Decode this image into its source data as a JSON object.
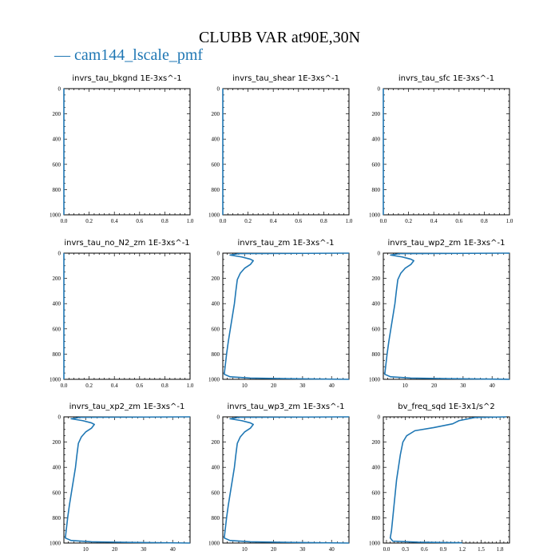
{
  "figure": {
    "title": "CLUBB VAR at90E,30N",
    "legend_label": "— cam144_lscale_pmf",
    "series_color": "#1f77b4"
  },
  "chart_data": [
    {
      "type": "line",
      "title": "invrs_tau_bkgnd   1E-3xs^-1",
      "xlim": [
        0,
        1
      ],
      "ylim": [
        1000,
        0
      ],
      "x_ticks": [
        0.0,
        0.2,
        0.4,
        0.6,
        0.8,
        1.0
      ],
      "x_tick_labels": [
        "0.0",
        "0.2",
        "0.4",
        "0.6",
        "0.8",
        "1.0"
      ],
      "y_ticks": [
        0,
        200,
        400,
        600,
        800,
        1000
      ],
      "series": [
        {
          "name": "cam144_lscale_pmf",
          "points": [
            [
              0,
              0
            ],
            [
              0,
              1000
            ]
          ]
        }
      ]
    },
    {
      "type": "line",
      "title": "invrs_tau_shear   1E-3xs^-1",
      "xlim": [
        0,
        1
      ],
      "ylim": [
        1000,
        0
      ],
      "x_ticks": [
        0.0,
        0.2,
        0.4,
        0.6,
        0.8,
        1.0
      ],
      "x_tick_labels": [
        "0.0",
        "0.2",
        "0.4",
        "0.6",
        "0.8",
        "1.0"
      ],
      "y_ticks": [
        0,
        200,
        400,
        600,
        800,
        1000
      ],
      "series": [
        {
          "name": "cam144_lscale_pmf",
          "points": [
            [
              0,
              0
            ],
            [
              0,
              1000
            ]
          ]
        }
      ]
    },
    {
      "type": "line",
      "title": "invrs_tau_sfc   1E-3xs^-1",
      "xlim": [
        0,
        1
      ],
      "ylim": [
        1000,
        0
      ],
      "x_ticks": [
        0.0,
        0.2,
        0.4,
        0.6,
        0.8,
        1.0
      ],
      "x_tick_labels": [
        "0.0",
        "0.2",
        "0.4",
        "0.6",
        "0.8",
        "1.0"
      ],
      "y_ticks": [
        0,
        200,
        400,
        600,
        800,
        1000
      ],
      "series": [
        {
          "name": "cam144_lscale_pmf",
          "points": [
            [
              0,
              0
            ],
            [
              0,
              1000
            ]
          ]
        }
      ]
    },
    {
      "type": "line",
      "title": "invrs_tau_no_N2_zm   1E-3xs^-1",
      "xlim": [
        0,
        1
      ],
      "ylim": [
        1000,
        0
      ],
      "x_ticks": [
        0.0,
        0.2,
        0.4,
        0.6,
        0.8,
        1.0
      ],
      "x_tick_labels": [
        "0.0",
        "0.2",
        "0.4",
        "0.6",
        "0.8",
        "1.0"
      ],
      "y_ticks": [
        0,
        200,
        400,
        600,
        800,
        1000
      ],
      "series": [
        {
          "name": "cam144_lscale_pmf",
          "points": [
            [
              0,
              0
            ],
            [
              0,
              1000
            ]
          ]
        }
      ]
    },
    {
      "type": "line",
      "title": "invrs_tau_zm   1E-3xs^-1",
      "xlim": [
        2.5,
        46
      ],
      "ylim": [
        1000,
        0
      ],
      "x_ticks": [
        10,
        20,
        30,
        40
      ],
      "x_tick_labels": [
        "10",
        "20",
        "30",
        "40"
      ],
      "y_ticks": [
        0,
        200,
        400,
        600,
        800,
        1000
      ],
      "series": [
        {
          "name": "cam144_lscale_pmf",
          "points": [
            [
              46,
              0
            ],
            [
              8,
              4
            ],
            [
              5,
              15
            ],
            [
              9,
              30
            ],
            [
              12,
              48
            ],
            [
              13,
              60
            ],
            [
              12,
              90
            ],
            [
              10,
              120
            ],
            [
              8.5,
              160
            ],
            [
              7.5,
              210
            ],
            [
              7,
              300
            ],
            [
              6.5,
              400
            ],
            [
              5.8,
              500
            ],
            [
              5.1,
              600
            ],
            [
              4.4,
              700
            ],
            [
              3.8,
              800
            ],
            [
              3.3,
              900
            ],
            [
              3,
              960
            ],
            [
              5,
              980
            ],
            [
              12,
              990
            ],
            [
              25,
              995
            ],
            [
              46,
              1000
            ]
          ]
        }
      ]
    },
    {
      "type": "line",
      "title": "invrs_tau_wp2_zm   1E-3xs^-1",
      "xlim": [
        2.5,
        46
      ],
      "ylim": [
        1000,
        0
      ],
      "x_ticks": [
        10,
        20,
        30,
        40
      ],
      "x_tick_labels": [
        "10",
        "20",
        "30",
        "40"
      ],
      "y_ticks": [
        0,
        200,
        400,
        600,
        800,
        1000
      ],
      "series": [
        {
          "name": "cam144_lscale_pmf",
          "points": [
            [
              46,
              0
            ],
            [
              8,
              4
            ],
            [
              5,
              15
            ],
            [
              9,
              30
            ],
            [
              12,
              48
            ],
            [
              13,
              60
            ],
            [
              12,
              90
            ],
            [
              10,
              120
            ],
            [
              8.5,
              160
            ],
            [
              7.5,
              210
            ],
            [
              7,
              300
            ],
            [
              6.5,
              400
            ],
            [
              5.8,
              500
            ],
            [
              5.1,
              600
            ],
            [
              4.4,
              700
            ],
            [
              3.8,
              800
            ],
            [
              3.3,
              900
            ],
            [
              3,
              960
            ],
            [
              5,
              980
            ],
            [
              12,
              990
            ],
            [
              25,
              995
            ],
            [
              46,
              1000
            ]
          ]
        }
      ]
    },
    {
      "type": "line",
      "title": "invrs_tau_xp2_zm   1E-3xs^-1",
      "xlim": [
        2.5,
        46
      ],
      "ylim": [
        1000,
        0
      ],
      "x_ticks": [
        10,
        20,
        30,
        40
      ],
      "x_tick_labels": [
        "10",
        "20",
        "30",
        "40"
      ],
      "y_ticks": [
        0,
        200,
        400,
        600,
        800,
        1000
      ],
      "series": [
        {
          "name": "cam144_lscale_pmf",
          "points": [
            [
              46,
              0
            ],
            [
              8,
              4
            ],
            [
              5,
              15
            ],
            [
              9,
              30
            ],
            [
              12,
              48
            ],
            [
              13,
              60
            ],
            [
              12,
              90
            ],
            [
              10,
              120
            ],
            [
              8.5,
              160
            ],
            [
              7.5,
              210
            ],
            [
              7,
              300
            ],
            [
              6.5,
              400
            ],
            [
              5.8,
              500
            ],
            [
              5.1,
              600
            ],
            [
              4.4,
              700
            ],
            [
              3.8,
              800
            ],
            [
              3.3,
              900
            ],
            [
              3,
              960
            ],
            [
              5,
              980
            ],
            [
              12,
              990
            ],
            [
              25,
              995
            ],
            [
              46,
              1000
            ]
          ]
        }
      ]
    },
    {
      "type": "line",
      "title": "invrs_tau_wp3_zm   1E-3xs^-1",
      "xlim": [
        2.5,
        46
      ],
      "ylim": [
        1000,
        0
      ],
      "x_ticks": [
        10,
        20,
        30,
        40
      ],
      "x_tick_labels": [
        "10",
        "20",
        "30",
        "40"
      ],
      "y_ticks": [
        0,
        200,
        400,
        600,
        800,
        1000
      ],
      "series": [
        {
          "name": "cam144_lscale_pmf",
          "points": [
            [
              46,
              0
            ],
            [
              8,
              4
            ],
            [
              5,
              15
            ],
            [
              9,
              30
            ],
            [
              12,
              48
            ],
            [
              13,
              60
            ],
            [
              12,
              90
            ],
            [
              10,
              120
            ],
            [
              8.5,
              160
            ],
            [
              7.5,
              210
            ],
            [
              7,
              300
            ],
            [
              6.5,
              400
            ],
            [
              5.8,
              500
            ],
            [
              5.1,
              600
            ],
            [
              4.4,
              700
            ],
            [
              3.8,
              800
            ],
            [
              3.3,
              900
            ],
            [
              3,
              960
            ],
            [
              5,
              980
            ],
            [
              12,
              990
            ],
            [
              25,
              995
            ],
            [
              46,
              1000
            ]
          ]
        }
      ]
    },
    {
      "type": "line",
      "title": "bv_freq_sqd   1E-3x1/s^2",
      "xlim": [
        -0.05,
        1.95
      ],
      "ylim": [
        1000,
        0
      ],
      "x_ticks": [
        0.0,
        0.3,
        0.6,
        0.9,
        1.2,
        1.5,
        1.8
      ],
      "x_tick_labels": [
        "0.0",
        "0.3",
        "0.6",
        "0.9",
        "1.2",
        "1.5",
        "1.8"
      ],
      "y_ticks": [
        0,
        200,
        400,
        600,
        800,
        1000
      ],
      "series": [
        {
          "name": "cam144_lscale_pmf",
          "points": [
            [
              1.9,
              0
            ],
            [
              1.4,
              5
            ],
            [
              1.15,
              30
            ],
            [
              1.05,
              55
            ],
            [
              0.75,
              85
            ],
            [
              0.45,
              110
            ],
            [
              0.32,
              150
            ],
            [
              0.26,
              200
            ],
            [
              0.22,
              300
            ],
            [
              0.19,
              400
            ],
            [
              0.16,
              500
            ],
            [
              0.14,
              600
            ],
            [
              0.12,
              700
            ],
            [
              0.1,
              800
            ],
            [
              0.08,
              900
            ],
            [
              0.06,
              960
            ],
            [
              0.1,
              985
            ],
            [
              0.5,
              993
            ],
            [
              1.2,
              998
            ]
          ]
        }
      ]
    }
  ]
}
